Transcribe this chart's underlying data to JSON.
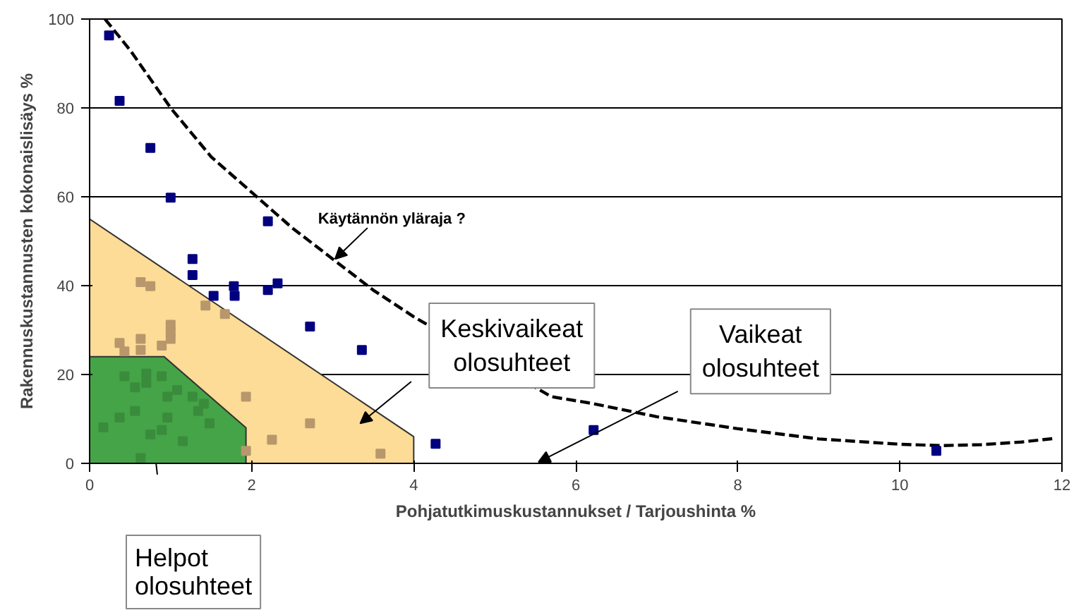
{
  "chart_data": {
    "type": "scatter",
    "xlabel": "Pohjatutkimuskustannukset / Tarjoushinta %",
    "ylabel": "Rakennuskustannusten kokonaislisäys %",
    "xlim": [
      0,
      12
    ],
    "ylim": [
      0,
      100
    ],
    "xticks": [
      0,
      2,
      4,
      6,
      8,
      10,
      12
    ],
    "yticks": [
      0,
      20,
      40,
      60,
      80,
      100
    ],
    "grid": "y",
    "series": [
      {
        "type": "area",
        "color": "#fcdc96",
        "x": [
          0,
          4
        ],
        "values": [
          55,
          6
        ]
      },
      {
        "type": "area",
        "color": "#44a447",
        "x": [
          0,
          0.92,
          1.93
        ],
        "values": [
          24,
          24,
          8
        ]
      },
      {
        "type": "line",
        "color": "#000000",
        "line_style": "dashed",
        "marker": "none",
        "x": [
          0.19,
          0.5,
          1,
          1.5,
          2,
          2.5,
          3,
          3.5,
          4,
          5.7,
          6.2,
          7,
          8,
          9,
          10,
          10.5,
          11,
          11.5,
          11.9
        ],
        "values": [
          100,
          93,
          80,
          69,
          61,
          53,
          46,
          39,
          33,
          15,
          13.5,
          10.5,
          7.8,
          5.5,
          4.3,
          4,
          4.2,
          4.8,
          5.6
        ]
      },
      {
        "marker": "square",
        "color": "#000080",
        "x": [
          0.24,
          0.37,
          0.75,
          1.0,
          2.2,
          1.27,
          1.27,
          1.53,
          1.78,
          1.79,
          2.2,
          2.32,
          2.72,
          3.36,
          4.27,
          6.22,
          10.45
        ],
        "values": [
          96.3,
          81.6,
          71,
          59.8,
          54.5,
          46,
          42.4,
          37.7,
          39.9,
          37.7,
          39,
          40.5,
          30.8,
          25.5,
          4.4,
          7.5,
          2.8
        ]
      },
      {
        "marker": "square",
        "color": "#b8976c",
        "x": [
          0.63,
          0.75,
          0.37,
          0.43,
          0.63,
          0.63,
          0.89,
          1.0,
          1.0,
          1.0,
          1.43,
          1.67,
          1.93,
          1.93,
          2.25,
          2.72,
          3.59
        ],
        "values": [
          40.8,
          39.9,
          27.1,
          25.2,
          28,
          25.5,
          26.5,
          31.2,
          29.6,
          28,
          35.5,
          33.6,
          15,
          2.8,
          5.3,
          9,
          2.2
        ]
      },
      {
        "marker": "square",
        "color": "#3a8c3c",
        "x": [
          0.17,
          0.37,
          0.43,
          0.56,
          0.56,
          0.63,
          0.7,
          0.7,
          0.75,
          0.89,
          0.89,
          0.96,
          0.96,
          1.08,
          1.15,
          1.27,
          1.34,
          1.41,
          1.48
        ],
        "values": [
          8.1,
          10.3,
          19.6,
          17.1,
          11.8,
          1.2,
          18.1,
          20.2,
          6.5,
          7.5,
          19.6,
          15,
          10.3,
          16.5,
          5,
          15,
          11.8,
          13.4,
          9
        ]
      }
    ],
    "annotations": [
      {
        "text": "Käytännön yläraja ?",
        "x": 3.03,
        "y": 46
      },
      "Keskivaikeat\nolosuhteet",
      "Vaikeat\nolosuhteet",
      "Helpot\nolosuhteet"
    ]
  }
}
